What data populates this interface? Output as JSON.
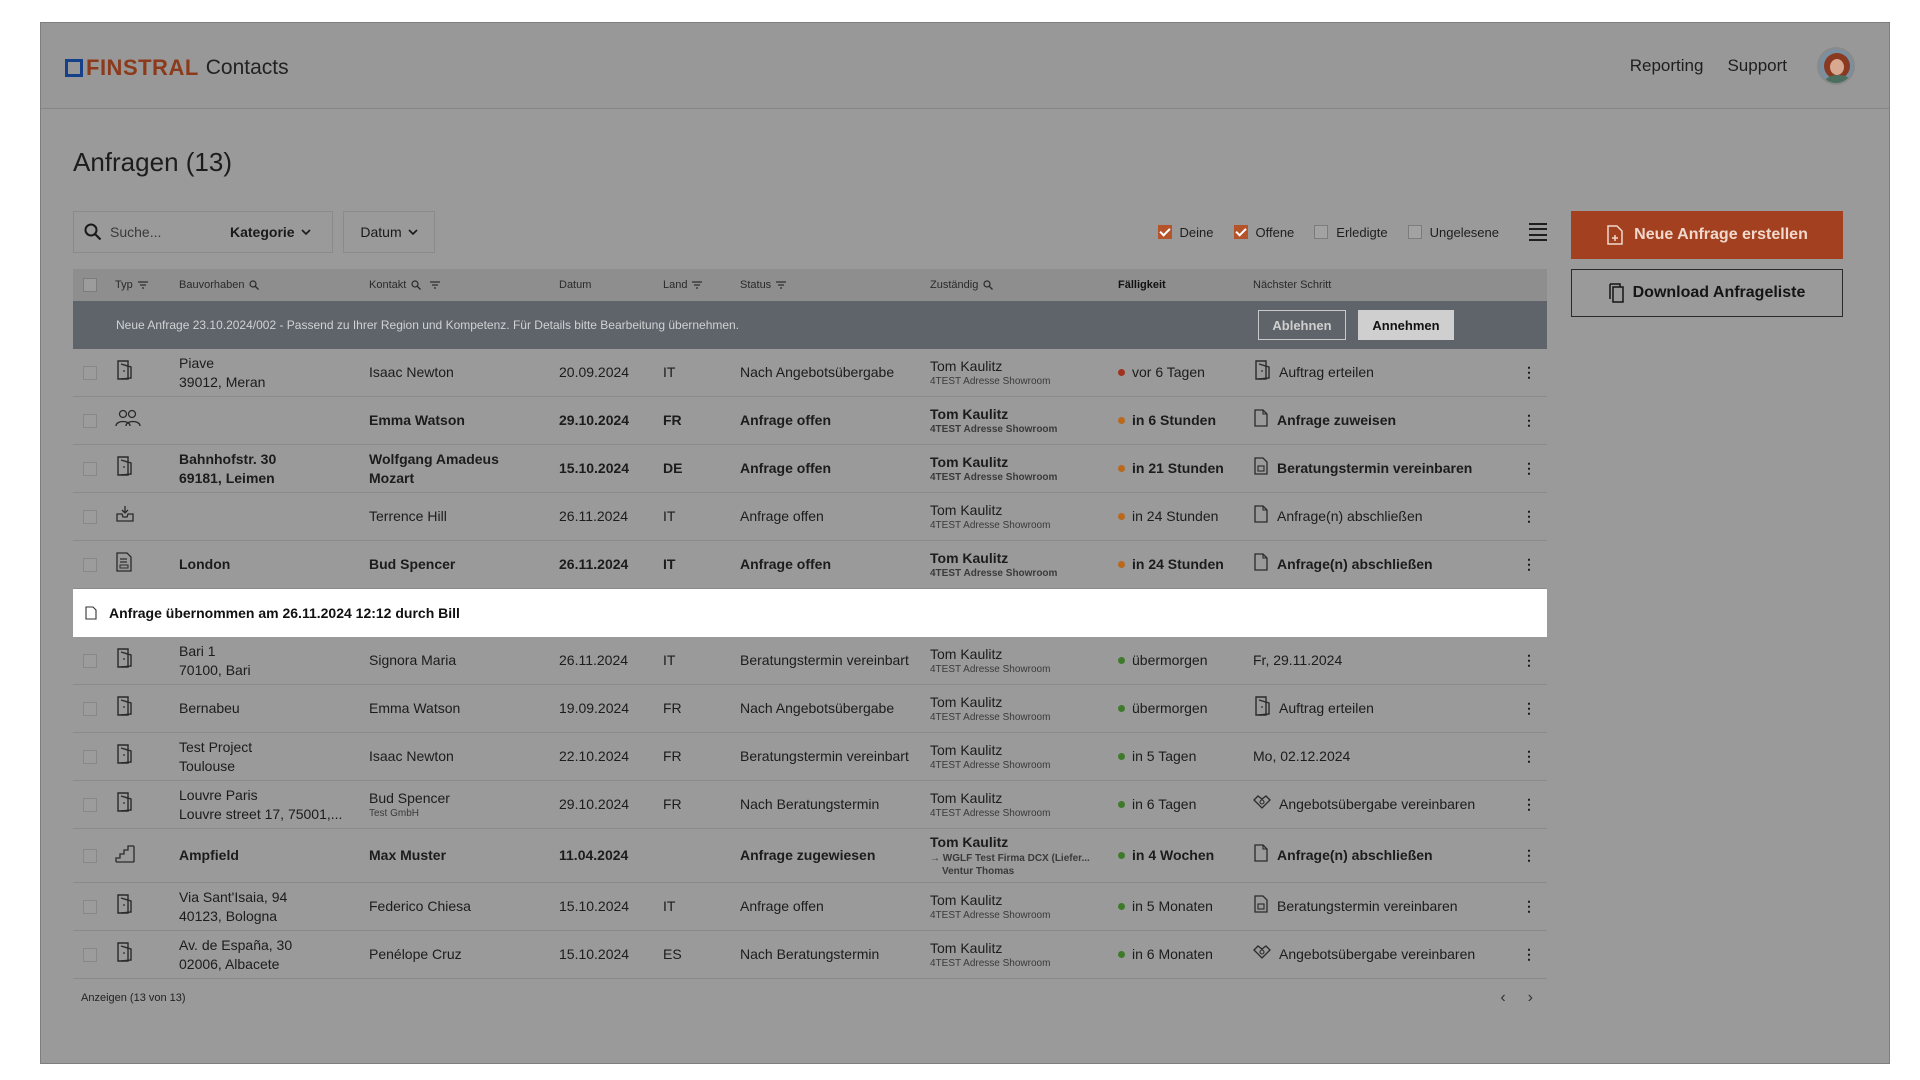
{
  "header": {
    "brand": "FINSTRAL",
    "app_name": "Contacts",
    "nav": [
      "Reporting",
      "Support"
    ],
    "avatar": "user-avatar"
  },
  "page": {
    "title": "Anfragen (13)"
  },
  "toolbar": {
    "search_placeholder": "Suche...",
    "category_label": "Kategorie",
    "date_label": "Datum",
    "filters": [
      {
        "label": "Deine",
        "checked": true
      },
      {
        "label": "Offene",
        "checked": true
      },
      {
        "label": "Erledigte",
        "checked": false
      },
      {
        "label": "Ungelesene",
        "checked": false
      }
    ]
  },
  "actions": {
    "create_label": "Neue Anfrage erstellen",
    "download_label": "Download Anfrageliste"
  },
  "table": {
    "columns": {
      "typ": "Typ",
      "bauvorhaben": "Bauvorhaben",
      "kontakt": "Kontakt",
      "datum": "Datum",
      "land": "Land",
      "status": "Status",
      "zustandig": "Zuständig",
      "falligkeit": "Fälligkeit",
      "schritt": "Nächster Schritt"
    },
    "notice": {
      "text": "Neue Anfrage 23.10.2024/002 - Passend zu Ihrer Region und Kompetenz. Für Details bitte Bearbeitung übernehmen.",
      "reject_label": "Ablehnen",
      "accept_label": "Annehmen"
    },
    "accepted_banner": "Anfrage übernommen am 26.11.2024 12:12 durch Bill",
    "rows_top": [
      {
        "icon": "door-icon",
        "bold": false,
        "proj1": "Piave",
        "proj2": "39012, Meran",
        "contact": "Isaac Newton",
        "contact_sub": "",
        "date": "20.09.2024",
        "land": "IT",
        "status": "Nach Angebotsübergabe",
        "resp": "Tom Kaulitz",
        "resp_sub": "4TEST Adresse Showroom",
        "due": "vor 6 Tagen",
        "due_color": "#a0321f",
        "next_icon": "door-icon",
        "next": "Auftrag erteilen"
      },
      {
        "icon": "people-icon",
        "bold": true,
        "proj1": "",
        "proj2": "",
        "contact": "Emma Watson",
        "contact_sub": "",
        "date": "29.10.2024",
        "land": "FR",
        "status": "Anfrage offen",
        "resp": "Tom Kaulitz",
        "resp_sub": "4TEST Adresse Showroom",
        "due": "in 6 Stunden",
        "due_color": "#b8691e",
        "next_icon": "document-icon",
        "next": "Anfrage zuweisen"
      },
      {
        "icon": "door-icon",
        "bold": true,
        "proj1": "Bahnhofstr. 30",
        "proj2": "69181, Leimen",
        "contact": "Wolfgang Amadeus",
        "contact_sub": "Mozart",
        "date": "15.10.2024",
        "land": "DE",
        "status": "Anfrage offen",
        "resp": "Tom Kaulitz",
        "resp_sub": "4TEST Adresse Showroom",
        "due": "in 21 Stunden",
        "due_color": "#b8691e",
        "next_icon": "calendar-doc-icon",
        "next": "Beratungstermin vereinbaren"
      },
      {
        "icon": "inbox-icon",
        "bold": false,
        "proj1": "",
        "proj2": "",
        "contact": "Terrence Hill",
        "contact_sub": "",
        "date": "26.11.2024",
        "land": "IT",
        "status": "Anfrage offen",
        "resp": "Tom Kaulitz",
        "resp_sub": "4TEST Adresse Showroom",
        "due": "in 24 Stunden",
        "due_color": "#b8691e",
        "next_icon": "document-icon",
        "next": "Anfrage(n) abschließen"
      },
      {
        "icon": "form-icon",
        "bold": true,
        "proj1": "London",
        "proj2": "",
        "contact": "Bud Spencer",
        "contact_sub": "",
        "date": "26.11.2024",
        "land": "IT",
        "status": "Anfrage offen",
        "resp": "Tom Kaulitz",
        "resp_sub": "4TEST Adresse Showroom",
        "due": "in 24 Stunden",
        "due_color": "#b8691e",
        "next_icon": "document-icon",
        "next": "Anfrage(n) abschließen"
      }
    ],
    "rows_bottom": [
      {
        "icon": "door-icon",
        "bold": false,
        "tall": false,
        "proj1": "Bari 1",
        "proj2": "70100, Bari",
        "contact": "Signora Maria",
        "contact_sub": "",
        "date": "26.11.2024",
        "land": "IT",
        "status": "Beratungstermin vereinbart",
        "resp": "Tom Kaulitz",
        "resp_sub": "4TEST Adresse Showroom",
        "due": "übermorgen",
        "due_color": "#3f7a2a",
        "next_icon": "",
        "next": "Fr, 29.11.2024"
      },
      {
        "icon": "door-icon",
        "bold": false,
        "tall": false,
        "proj1": "Bernabeu",
        "proj2": "",
        "contact": "Emma Watson",
        "contact_sub": "",
        "date": "19.09.2024",
        "land": "FR",
        "status": "Nach Angebotsübergabe",
        "resp": "Tom Kaulitz",
        "resp_sub": "4TEST Adresse Showroom",
        "due": "übermorgen",
        "due_color": "#3f7a2a",
        "next_icon": "door-icon",
        "next": "Auftrag erteilen"
      },
      {
        "icon": "door-icon",
        "bold": false,
        "tall": false,
        "proj1": "Test Project",
        "proj2": "Toulouse",
        "contact": "Isaac Newton",
        "contact_sub": "",
        "date": "22.10.2024",
        "land": "FR",
        "status": "Beratungstermin vereinbart",
        "resp": "Tom Kaulitz",
        "resp_sub": "4TEST Adresse Showroom",
        "due": "in 5 Tagen",
        "due_color": "#3f7a2a",
        "next_icon": "",
        "next": "Mo, 02.12.2024"
      },
      {
        "icon": "door-icon",
        "bold": false,
        "tall": false,
        "proj1": "Louvre Paris",
        "proj2": "Louvre street 17, 75001,...",
        "contact": "Bud Spencer",
        "contact_sub": "Test GmbH",
        "date": "29.10.2024",
        "land": "FR",
        "status": "Nach Beratungstermin",
        "resp": "Tom Kaulitz",
        "resp_sub": "4TEST Adresse Showroom",
        "due": "in 6 Tagen",
        "due_color": "#3f7a2a",
        "next_icon": "handshake-icon",
        "next": "Angebotsübergabe vereinbaren"
      },
      {
        "icon": "stairs-icon",
        "bold": true,
        "tall": true,
        "proj1": "Ampfield",
        "proj2": "",
        "contact": "Max Muster",
        "contact_sub": "",
        "date": "11.04.2024",
        "land": "",
        "status": "Anfrage zugewiesen",
        "resp": "Tom Kaulitz",
        "resp_sub": "→ WGLF Test Firma DCX (Liefer...",
        "resp_sub2": "Ventur Thomas",
        "due": "in 4 Wochen",
        "due_color": "#3f7a2a",
        "next_icon": "document-icon",
        "next": "Anfrage(n) abschließen"
      },
      {
        "icon": "door-icon",
        "bold": false,
        "tall": false,
        "proj1": "Via Sant'Isaia, 94",
        "proj2": "40123, Bologna",
        "contact": "Federico Chiesa",
        "contact_sub": "",
        "date": "15.10.2024",
        "land": "IT",
        "status": "Anfrage offen",
        "resp": "Tom Kaulitz",
        "resp_sub": "4TEST Adresse Showroom",
        "due": "in 5 Monaten",
        "due_color": "#3f7a2a",
        "next_icon": "calendar-doc-icon",
        "next": "Beratungstermin vereinbaren"
      },
      {
        "icon": "door-icon",
        "bold": false,
        "tall": false,
        "proj1": "Av. de España, 30",
        "proj2": "02006, Albacete",
        "contact": "Penélope Cruz",
        "contact_sub": "",
        "date": "15.10.2024",
        "land": "ES",
        "status": "Nach Beratungstermin",
        "resp": "Tom Kaulitz",
        "resp_sub": "4TEST Adresse Showroom",
        "due": "in 6 Monaten",
        "due_color": "#3f7a2a",
        "next_icon": "handshake-icon",
        "next": "Angebotsübergabe vereinbaren"
      }
    ],
    "footer": {
      "count_label": "Anzeigen  (13 von 13)",
      "prev": "‹",
      "next": "›"
    }
  }
}
